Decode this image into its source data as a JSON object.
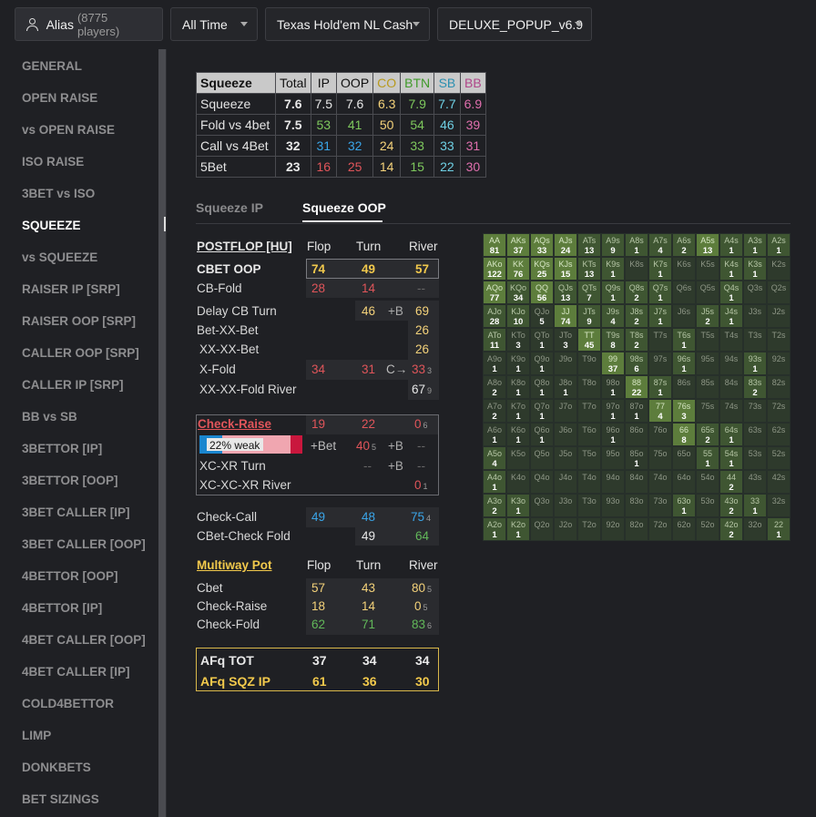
{
  "topbar": {
    "alias_label": "Alias",
    "alias_count": "(8775 players)",
    "time_filter": "All Time",
    "game_filter": "Texas Hold'em NL Cash",
    "popup_filter": "DELUXE_POPUP_v6.9"
  },
  "sidebar": {
    "items": [
      "GENERAL",
      "OPEN RAISE",
      "vs OPEN RAISE",
      "ISO RAISE",
      "3BET vs ISO",
      "SQUEEZE",
      "vs SQUEEZE",
      "RAISER IP [SRP]",
      "RAISER OOP [SRP]",
      "CALLER OOP [SRP]",
      "CALLER IP [SRP]",
      "BB vs SB",
      "3BETTOR [IP]",
      "3BETTOR [OOP]",
      "3BET CALLER [IP]",
      "3BET CALLER [OOP]",
      "4BETTOR [OOP]",
      "4BETTOR [IP]",
      "4BET CALLER [OOP]",
      "4BET CALLER [IP]",
      "COLD4BETTOR",
      "LIMP",
      "DONKBETS",
      "BET SIZINGS"
    ],
    "active": "SQUEEZE"
  },
  "squeeze_table": {
    "headers": [
      "Squeeze",
      "Total",
      "IP",
      "OOP",
      "CO",
      "BTN",
      "SB",
      "BB"
    ],
    "rows": [
      {
        "label": "Squeeze",
        "total": "7.6",
        "ip": "7.5",
        "oop": "7.6",
        "co": "6.3",
        "btn": "7.9",
        "sb": "7.7",
        "bb": "6.9"
      },
      {
        "label": "Fold vs 4bet",
        "total": "7.5",
        "ip": "53",
        "oop": "41",
        "co": "50",
        "btn": "54",
        "sb": "46",
        "bb": "39"
      },
      {
        "label": "Call vs 4Bet",
        "total": "32",
        "ip": "31",
        "oop": "32",
        "co": "24",
        "btn": "33",
        "sb": "33",
        "bb": "31"
      },
      {
        "label": "5Bet",
        "total": "23",
        "ip": "16",
        "oop": "25",
        "co": "14",
        "btn": "15",
        "sb": "22",
        "bb": "30"
      }
    ]
  },
  "tabs": {
    "ip": "Squeeze IP",
    "oop": "Squeeze OOP"
  },
  "postflop": {
    "title": "POSTFLOP [HU]",
    "flop": "Flop",
    "turn": "Turn",
    "river": "River",
    "cbet_oop": {
      "label": "CBET OOP",
      "flop": "74",
      "turn": "49",
      "river": "57"
    },
    "cb_fold": {
      "label": "CB-Fold",
      "flop": "28",
      "turn": "14",
      "river": "--"
    },
    "delay_cb": {
      "label": "Delay CB Turn",
      "turn": "46",
      "turn_suffix": "+B",
      "river": "69"
    },
    "bet_xx_bet": {
      "label": "Bet-XX-Bet",
      "river": "26"
    },
    "xx_xx_bet": {
      "label": "XX-XX-Bet",
      "river": "26"
    },
    "x_fold": {
      "label": "X-Fold",
      "flop": "34",
      "turn": "31",
      "turn_suffix": "C→",
      "river": "33",
      "river_sub": "3"
    },
    "xx_xx_fold": {
      "label": "XX-XX-Fold River",
      "river": "67",
      "river_sub": "9"
    },
    "check_raise": {
      "label": "Check-Raise",
      "flop": "19",
      "turn": "22",
      "river": "0",
      "river_sub": "6"
    },
    "weak": {
      "text": "22% weak",
      "bet_label": "+Bet",
      "turn": "40",
      "turn_sub": "5",
      "river_label": "+B",
      "river": "--"
    },
    "xc_xr_turn": {
      "label": "XC-XR Turn",
      "turn": "--",
      "river_label": "+B",
      "river": "--"
    },
    "xc_xc_xr": {
      "label": "XC-XC-XR River",
      "river": "0",
      "river_sub": "1"
    },
    "check_call": {
      "label": "Check-Call",
      "flop": "49",
      "turn": "48",
      "river": "75",
      "river_sub": "4"
    },
    "cbet_check_fold": {
      "label": "CBet-Check Fold",
      "turn": "49",
      "river": "64"
    }
  },
  "multiway": {
    "title": "Multiway Pot",
    "flop": "Flop",
    "turn": "Turn",
    "river": "River",
    "cbet": {
      "label": "Cbet",
      "flop": "57",
      "turn": "43",
      "river": "80",
      "river_sub": "5"
    },
    "check_raise": {
      "label": "Check-Raise",
      "flop": "18",
      "turn": "14",
      "river": "0",
      "river_sub": "5"
    },
    "check_fold": {
      "label": "Check-Fold",
      "flop": "62",
      "turn": "71",
      "river": "83",
      "river_sub": "6"
    }
  },
  "afq": {
    "tot": {
      "label": "AFq TOT",
      "flop": "37",
      "turn": "34",
      "river": "34"
    },
    "sqz": {
      "label": "AFq SQZ IP",
      "flop": "61",
      "turn": "36",
      "river": "30"
    }
  },
  "range": {
    "rows": [
      [
        [
          "AA",
          "81"
        ],
        [
          "AKs",
          "37"
        ],
        [
          "AQs",
          "33"
        ],
        [
          "AJs",
          "24"
        ],
        [
          "ATs",
          "13"
        ],
        [
          "A9s",
          "9"
        ],
        [
          "A8s",
          "1"
        ],
        [
          "A7s",
          "4"
        ],
        [
          "A6s",
          "2"
        ],
        [
          "A5s",
          "13"
        ],
        [
          "A4s",
          "1"
        ],
        [
          "A3s",
          "1"
        ],
        [
          "A2s",
          "1"
        ]
      ],
      [
        [
          "AKo",
          "122"
        ],
        [
          "KK",
          "76"
        ],
        [
          "KQs",
          "25"
        ],
        [
          "KJs",
          "15"
        ],
        [
          "KTs",
          "13"
        ],
        [
          "K9s",
          "1"
        ],
        [
          "K8s",
          ""
        ],
        [
          "K7s",
          "1"
        ],
        [
          "K6s",
          ""
        ],
        [
          "K5s",
          ""
        ],
        [
          "K4s",
          "1"
        ],
        [
          "K3s",
          "1"
        ],
        [
          "K2s",
          ""
        ]
      ],
      [
        [
          "AQo",
          "77"
        ],
        [
          "KQo",
          "34"
        ],
        [
          "QQ",
          "56"
        ],
        [
          "QJs",
          "13"
        ],
        [
          "QTs",
          "7"
        ],
        [
          "Q9s",
          "1"
        ],
        [
          "Q8s",
          "2"
        ],
        [
          "Q7s",
          "1"
        ],
        [
          "Q6s",
          ""
        ],
        [
          "Q5s",
          ""
        ],
        [
          "Q4s",
          "1"
        ],
        [
          "Q3s",
          ""
        ],
        [
          "Q2s",
          ""
        ]
      ],
      [
        [
          "AJo",
          "28"
        ],
        [
          "KJo",
          "10"
        ],
        [
          "QJo",
          "5"
        ],
        [
          "JJ",
          "74"
        ],
        [
          "JTs",
          "9"
        ],
        [
          "J9s",
          "4"
        ],
        [
          "J8s",
          "2"
        ],
        [
          "J7s",
          "1"
        ],
        [
          "J6s",
          ""
        ],
        [
          "J5s",
          "2"
        ],
        [
          "J4s",
          "1"
        ],
        [
          "J3s",
          ""
        ],
        [
          "J2s",
          ""
        ]
      ],
      [
        [
          "ATo",
          "11"
        ],
        [
          "KTo",
          "3"
        ],
        [
          "QTo",
          "1"
        ],
        [
          "JTo",
          "3"
        ],
        [
          "TT",
          "45"
        ],
        [
          "T9s",
          "8"
        ],
        [
          "T8s",
          "2"
        ],
        [
          "T7s",
          ""
        ],
        [
          "T6s",
          "1"
        ],
        [
          "T5s",
          ""
        ],
        [
          "T4s",
          ""
        ],
        [
          "T3s",
          ""
        ],
        [
          "T2s",
          ""
        ]
      ],
      [
        [
          "A9o",
          "1"
        ],
        [
          "K9o",
          "1"
        ],
        [
          "Q9o",
          "1"
        ],
        [
          "J9o",
          ""
        ],
        [
          "T9o",
          ""
        ],
        [
          "99",
          "37"
        ],
        [
          "98s",
          "6"
        ],
        [
          "97s",
          ""
        ],
        [
          "96s",
          "1"
        ],
        [
          "95s",
          ""
        ],
        [
          "94s",
          ""
        ],
        [
          "93s",
          "1"
        ],
        [
          "92s",
          ""
        ]
      ],
      [
        [
          "A8o",
          "2"
        ],
        [
          "K8o",
          "1"
        ],
        [
          "Q8o",
          "1"
        ],
        [
          "J8o",
          "1"
        ],
        [
          "T8o",
          ""
        ],
        [
          "98o",
          "1"
        ],
        [
          "88",
          "22"
        ],
        [
          "87s",
          "1"
        ],
        [
          "86s",
          ""
        ],
        [
          "85s",
          ""
        ],
        [
          "84s",
          ""
        ],
        [
          "83s",
          "2"
        ],
        [
          "82s",
          ""
        ]
      ],
      [
        [
          "A7o",
          "2"
        ],
        [
          "K7o",
          "1"
        ],
        [
          "Q7o",
          "1"
        ],
        [
          "J7o",
          ""
        ],
        [
          "T7o",
          ""
        ],
        [
          "97o",
          "1"
        ],
        [
          "87o",
          "1"
        ],
        [
          "77",
          "4"
        ],
        [
          "76s",
          "3"
        ],
        [
          "75s",
          ""
        ],
        [
          "74s",
          ""
        ],
        [
          "73s",
          ""
        ],
        [
          "72s",
          ""
        ]
      ],
      [
        [
          "A6o",
          "1"
        ],
        [
          "K6o",
          "1"
        ],
        [
          "Q6o",
          "1"
        ],
        [
          "J6o",
          ""
        ],
        [
          "T6o",
          ""
        ],
        [
          "96o",
          "1"
        ],
        [
          "86o",
          ""
        ],
        [
          "76o",
          ""
        ],
        [
          "66",
          "8"
        ],
        [
          "65s",
          "2"
        ],
        [
          "64s",
          "1"
        ],
        [
          "63s",
          ""
        ],
        [
          "62s",
          ""
        ]
      ],
      [
        [
          "A5o",
          "4"
        ],
        [
          "K5o",
          ""
        ],
        [
          "Q5o",
          ""
        ],
        [
          "J5o",
          ""
        ],
        [
          "T5o",
          ""
        ],
        [
          "95o",
          ""
        ],
        [
          "85o",
          "1"
        ],
        [
          "75o",
          ""
        ],
        [
          "65o",
          ""
        ],
        [
          "55",
          "1"
        ],
        [
          "54s",
          "1"
        ],
        [
          "53s",
          ""
        ],
        [
          "52s",
          ""
        ]
      ],
      [
        [
          "A4o",
          "1"
        ],
        [
          "K4o",
          ""
        ],
        [
          "Q4o",
          ""
        ],
        [
          "J4o",
          ""
        ],
        [
          "T4o",
          ""
        ],
        [
          "94o",
          ""
        ],
        [
          "84o",
          ""
        ],
        [
          "74o",
          ""
        ],
        [
          "64o",
          ""
        ],
        [
          "54o",
          ""
        ],
        [
          "44",
          "2"
        ],
        [
          "43s",
          ""
        ],
        [
          "42s",
          ""
        ]
      ],
      [
        [
          "A3o",
          "2"
        ],
        [
          "K3o",
          "1"
        ],
        [
          "Q3o",
          ""
        ],
        [
          "J3o",
          ""
        ],
        [
          "T3o",
          ""
        ],
        [
          "93o",
          ""
        ],
        [
          "83o",
          ""
        ],
        [
          "73o",
          ""
        ],
        [
          "63o",
          "1"
        ],
        [
          "53o",
          ""
        ],
        [
          "43o",
          "2"
        ],
        [
          "33",
          "1"
        ],
        [
          "32s",
          ""
        ]
      ],
      [
        [
          "A2o",
          "1"
        ],
        [
          "K2o",
          "1"
        ],
        [
          "Q2o",
          ""
        ],
        [
          "J2o",
          ""
        ],
        [
          "T2o",
          ""
        ],
        [
          "92o",
          ""
        ],
        [
          "82o",
          ""
        ],
        [
          "72o",
          ""
        ],
        [
          "62o",
          ""
        ],
        [
          "52o",
          ""
        ],
        [
          "42o",
          "2"
        ],
        [
          "32o",
          ""
        ],
        [
          "22",
          "1"
        ]
      ]
    ]
  },
  "colors": {
    "gold": "#f2c94c",
    "green": "#7ec85d",
    "red": "#e0555a",
    "blue": "#3aa5e8",
    "cyan": "#6fd0e4",
    "pink": "#e06fae"
  }
}
